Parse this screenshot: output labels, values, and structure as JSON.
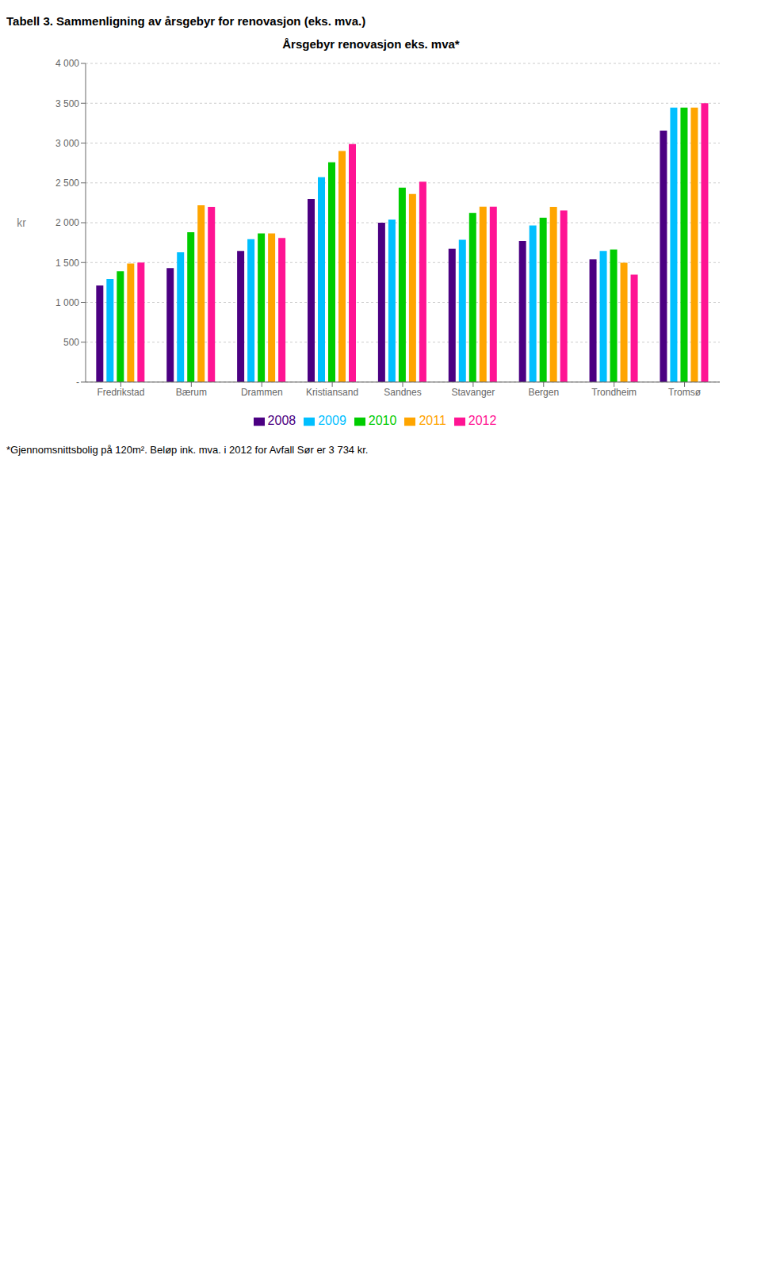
{
  "chart_data": {
    "type": "bar",
    "title": "Årsgebyr renovasjon eks. mva*",
    "y_label": "kr",
    "categories": [
      "Fredrikstad",
      "Bærum",
      "Drammen",
      "Kristiansand",
      "Sandnes",
      "Stavanger",
      "Bergen",
      "Trondheim",
      "Tromsø"
    ],
    "series": [
      {
        "name": "2008",
        "color": "#4B0082",
        "values": [
          1211,
          1430,
          1645,
          2299,
          2000,
          1675,
          1772,
          1540,
          3156
        ]
      },
      {
        "name": "2009",
        "color": "#00BFFF",
        "values": [
          1293,
          1630,
          1793,
          2572,
          2040,
          1787,
          1966,
          1644,
          3446
        ]
      },
      {
        "name": "2010",
        "color": "#00CC00",
        "values": [
          1391,
          1880,
          1865,
          2758,
          2440,
          2123,
          2062,
          1664,
          3446
        ]
      },
      {
        "name": "2011",
        "color": "#FFA500",
        "values": [
          1487,
          2220,
          1865,
          2900,
          2360,
          2202,
          2200,
          1498,
          3446
        ]
      },
      {
        "name": "2012",
        "color": "#FF1493",
        "values": [
          1500,
          2200,
          1809,
          2987,
          2516,
          2202,
          2154,
          1348,
          3501
        ]
      }
    ],
    "ylim": [
      0,
      4000
    ],
    "yticks": [
      {
        "value": 0,
        "label": "-"
      },
      500,
      {
        "value": 1000,
        "label": "1 000"
      },
      {
        "value": 1500,
        "label": "1 500"
      },
      {
        "value": 2000,
        "label": "2 000"
      },
      {
        "value": 2500,
        "label": "2 500"
      },
      {
        "value": 3000,
        "label": "3 000"
      },
      {
        "value": 3500,
        "label": "3 500"
      },
      {
        "value": 4000,
        "label": "4 000"
      }
    ],
    "grid": true,
    "legend": "bottom",
    "annotations": [
      "Tabell 3. Sammenligning av årsgebyr for renovasjon (eks. mva.)",
      "*Gjennomsnittsbolig på 120m². Beløp ink. mva. i 2012 for Avfall Sør er 3 734 kr."
    ]
  }
}
